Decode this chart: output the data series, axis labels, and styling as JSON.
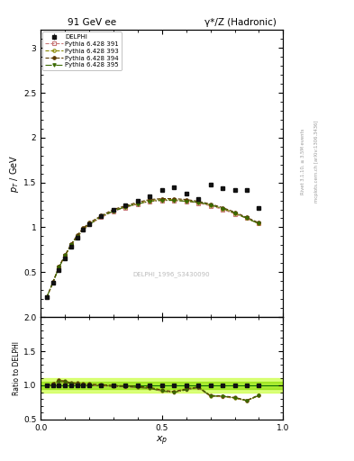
{
  "title_left": "91 GeV ee",
  "title_right": "γ*/Z (Hadronic)",
  "xlabel": "x_p",
  "ylabel_main": "p_T / GeV",
  "ylabel_ratio": "Ratio to DELPHI",
  "watermark": "DELPHI_1996_S3430090",
  "right_label_top": "Rivet 3.1.10, ≥ 3.5M events",
  "right_label_bottom": "mcplots.cern.ch [arXiv:1306.3436]",
  "delphi_x": [
    0.025,
    0.05,
    0.075,
    0.1,
    0.125,
    0.15,
    0.175,
    0.2,
    0.25,
    0.3,
    0.35,
    0.4,
    0.45,
    0.5,
    0.55,
    0.6,
    0.65,
    0.7,
    0.75,
    0.8,
    0.85,
    0.9
  ],
  "delphi_y": [
    0.22,
    0.38,
    0.52,
    0.65,
    0.78,
    0.88,
    0.97,
    1.03,
    1.12,
    1.2,
    1.25,
    1.3,
    1.35,
    1.42,
    1.45,
    1.38,
    1.32,
    1.48,
    1.44,
    1.42,
    1.42,
    1.22
  ],
  "delphi_yerr": [
    0.01,
    0.01,
    0.01,
    0.01,
    0.01,
    0.01,
    0.01,
    0.01,
    0.01,
    0.01,
    0.01,
    0.01,
    0.01,
    0.01,
    0.01,
    0.01,
    0.01,
    0.01,
    0.01,
    0.01,
    0.01,
    0.02
  ],
  "py391_x": [
    0.025,
    0.05,
    0.075,
    0.1,
    0.125,
    0.15,
    0.175,
    0.2,
    0.25,
    0.3,
    0.35,
    0.4,
    0.45,
    0.5,
    0.55,
    0.6,
    0.65,
    0.7,
    0.75,
    0.8,
    0.85,
    0.9
  ],
  "py391_y": [
    0.22,
    0.38,
    0.55,
    0.68,
    0.8,
    0.89,
    0.97,
    1.03,
    1.11,
    1.18,
    1.22,
    1.26,
    1.29,
    1.3,
    1.3,
    1.29,
    1.27,
    1.24,
    1.2,
    1.15,
    1.1,
    1.04
  ],
  "py393_x": [
    0.025,
    0.05,
    0.075,
    0.1,
    0.125,
    0.15,
    0.175,
    0.2,
    0.25,
    0.3,
    0.35,
    0.4,
    0.45,
    0.5,
    0.55,
    0.6,
    0.65,
    0.7,
    0.75,
    0.8,
    0.85,
    0.9
  ],
  "py393_y": [
    0.22,
    0.38,
    0.56,
    0.68,
    0.8,
    0.9,
    0.98,
    1.04,
    1.12,
    1.19,
    1.23,
    1.27,
    1.3,
    1.31,
    1.31,
    1.3,
    1.28,
    1.25,
    1.21,
    1.16,
    1.1,
    1.04
  ],
  "py394_x": [
    0.025,
    0.05,
    0.075,
    0.1,
    0.125,
    0.15,
    0.175,
    0.2,
    0.25,
    0.3,
    0.35,
    0.4,
    0.45,
    0.5,
    0.55,
    0.6,
    0.65,
    0.7,
    0.75,
    0.8,
    0.85,
    0.9
  ],
  "py394_y": [
    0.22,
    0.39,
    0.56,
    0.69,
    0.81,
    0.91,
    0.99,
    1.05,
    1.13,
    1.2,
    1.24,
    1.28,
    1.31,
    1.32,
    1.32,
    1.31,
    1.29,
    1.26,
    1.22,
    1.17,
    1.11,
    1.05
  ],
  "py395_x": [
    0.025,
    0.05,
    0.075,
    0.1,
    0.125,
    0.15,
    0.175,
    0.2,
    0.25,
    0.3,
    0.35,
    0.4,
    0.45,
    0.5,
    0.55,
    0.6,
    0.65,
    0.7,
    0.75,
    0.8,
    0.85,
    0.9
  ],
  "py395_y": [
    0.22,
    0.38,
    0.55,
    0.68,
    0.8,
    0.89,
    0.97,
    1.03,
    1.12,
    1.18,
    1.23,
    1.26,
    1.29,
    1.3,
    1.3,
    1.29,
    1.28,
    1.25,
    1.21,
    1.16,
    1.1,
    1.04
  ],
  "color_delphi": "#111111",
  "color_391": "#c87878",
  "color_393": "#888800",
  "color_394": "#5a3a00",
  "color_395": "#3a6a00",
  "ylim_main": [
    0.0,
    3.2
  ],
  "ylim_ratio": [
    0.5,
    2.0
  ],
  "xlim": [
    0.0,
    1.0
  ],
  "band_outer_color": "#ccff44",
  "band_inner_color": "#88dd00"
}
